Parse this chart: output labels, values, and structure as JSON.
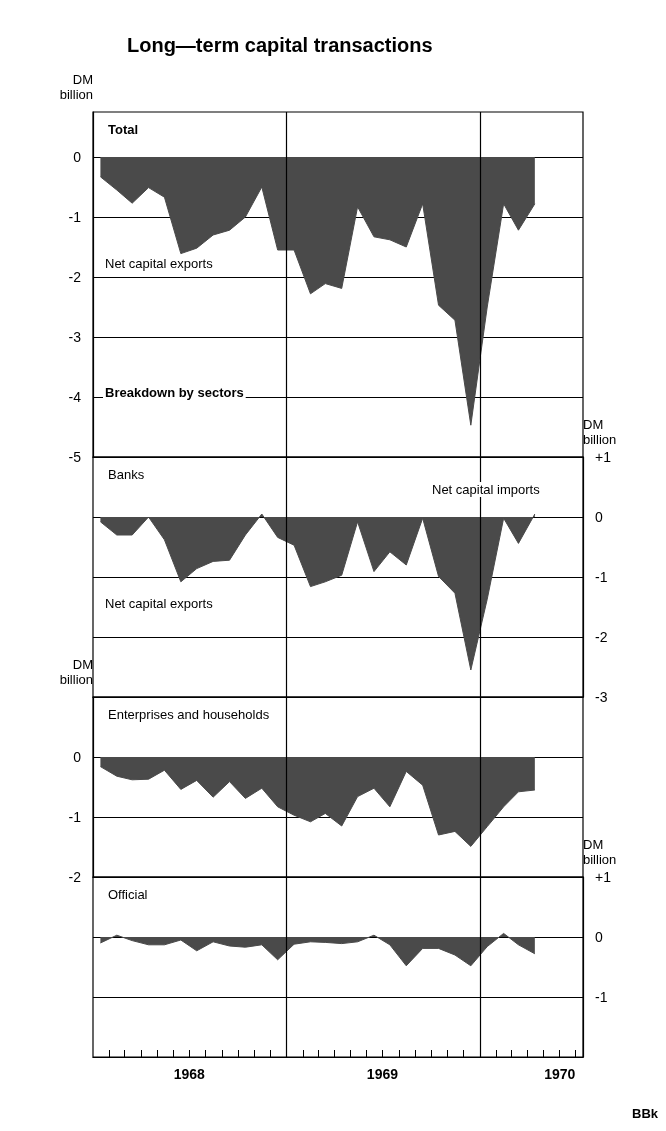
{
  "chart_data": [
    {
      "type": "area",
      "title": "Long—term capital transactions",
      "subtitle": "Total",
      "ylabel": "DM billion",
      "annotations": [
        "Net capital exports",
        "Breakdown by sectors"
      ],
      "x": [
        "1968-01-15",
        "1968-02-15",
        "1968-03-15",
        "1968-04-15",
        "1968-05-15",
        "1968-06-15",
        "1968-07-15",
        "1968-08-15",
        "1968-09-15",
        "1968-10-15",
        "1968-11-15",
        "1968-12-15",
        "1969-01-15",
        "1969-02-15",
        "1969-03-15",
        "1969-04-15",
        "1969-05-15",
        "1969-06-15",
        "1969-07-15",
        "1969-08-15",
        "1969-09-15",
        "1969-10-15",
        "1969-11-15",
        "1969-12-15",
        "1970-01-15",
        "1970-02-15",
        "1970-03-15",
        "1970-04-15"
      ],
      "values": [
        -0.33,
        -0.55,
        -0.77,
        -0.51,
        -0.67,
        -1.61,
        -1.52,
        -1.3,
        -1.22,
        -1.0,
        -0.5,
        -1.55,
        -1.55,
        -2.28,
        -2.11,
        -2.19,
        -0.83,
        -1.33,
        -1.38,
        -1.5,
        -0.78,
        -2.47,
        -2.72,
        -4.47,
        -2.5,
        -0.78,
        -1.22,
        -0.78
      ],
      "color": "#4a4a4a",
      "marker": "none",
      "xlim": [
        "1968-01-01",
        "1970-07-15"
      ],
      "ylim": [
        -5,
        0.75
      ],
      "yticks": [
        -5,
        -4,
        -3,
        -2,
        -1,
        0
      ],
      "grid": "y",
      "tick_labels": "y",
      "ref_lines": [
        {
          "axis": "x",
          "value": "1969-01-01",
          "color": "#000000"
        },
        {
          "axis": "x",
          "value": "1970-01-01",
          "color": "#000000"
        }
      ]
    },
    {
      "type": "area",
      "title": "Banks",
      "y2label": "DM billion",
      "annotations": [
        "Net capital imports",
        "Net capital exports"
      ],
      "x": [
        "1968-01-15",
        "1968-02-15",
        "1968-03-15",
        "1968-04-15",
        "1968-05-15",
        "1968-06-15",
        "1968-07-15",
        "1968-08-15",
        "1968-09-15",
        "1968-10-15",
        "1968-11-15",
        "1968-12-15",
        "1969-01-15",
        "1969-02-15",
        "1969-03-15",
        "1969-04-15",
        "1969-05-15",
        "1969-06-15",
        "1969-07-15",
        "1969-08-15",
        "1969-09-15",
        "1969-10-15",
        "1969-11-15",
        "1969-12-15",
        "1970-01-15",
        "1970-02-15",
        "1970-03-15",
        "1970-04-15"
      ],
      "series": [
        {
          "axis": "y2",
          "color": "#4a4a4a",
          "values": [
            -0.08,
            -0.3,
            -0.3,
            0,
            -0.38,
            -1.08,
            -0.86,
            -0.74,
            -0.72,
            -0.3,
            0.05,
            -0.34,
            -0.47,
            -1.16,
            -1.08,
            -0.97,
            -0.08,
            -0.91,
            -0.58,
            -0.8,
            -0.02,
            -0.99,
            -1.27,
            -2.55,
            -1.37,
            -0.02,
            -0.44,
            0.05
          ]
        }
      ],
      "marker": "none",
      "xlim": [
        "1968-01-01",
        "1970-07-15"
      ],
      "y2lim": [
        -3,
        1
      ],
      "y2ticks": [
        -3,
        -2,
        -1,
        0,
        {
          "value": 1,
          "label": "+1"
        }
      ],
      "grid": "y",
      "tick_labels": "y",
      "ref_lines": [
        {
          "axis": "x",
          "value": "1969-01-01",
          "color": "#000000"
        },
        {
          "axis": "x",
          "value": "1970-01-01",
          "color": "#000000"
        }
      ]
    },
    {
      "type": "area",
      "title": "Enterprises and households",
      "ylabel": "DM billion",
      "x": [
        "1968-01-15",
        "1968-02-15",
        "1968-03-15",
        "1968-04-15",
        "1968-05-15",
        "1968-06-15",
        "1968-07-15",
        "1968-08-15",
        "1968-09-15",
        "1968-10-15",
        "1968-11-15",
        "1968-12-15",
        "1969-01-15",
        "1969-02-15",
        "1969-03-15",
        "1969-04-15",
        "1969-05-15",
        "1969-06-15",
        "1969-07-15",
        "1969-08-15",
        "1969-09-15",
        "1969-10-15",
        "1969-11-15",
        "1969-12-15",
        "1970-01-15",
        "1970-02-15",
        "1970-03-15",
        "1970-04-15"
      ],
      "values": [
        -0.16,
        -0.32,
        -0.38,
        -0.37,
        -0.22,
        -0.54,
        -0.39,
        -0.67,
        -0.41,
        -0.69,
        -0.52,
        -0.83,
        -0.97,
        -1.08,
        -0.94,
        -1.15,
        -0.66,
        -0.52,
        -0.83,
        -0.24,
        -0.47,
        -1.3,
        -1.24,
        -1.49,
        -1.16,
        -0.83,
        -0.58,
        -0.55
      ],
      "color": "#4a4a4a",
      "marker": "none",
      "xlim": [
        "1968-01-01",
        "1970-07-15"
      ],
      "ylim": [
        -2,
        1
      ],
      "yticks": [
        -2,
        -1,
        0
      ],
      "grid": "y",
      "tick_labels": "y",
      "ref_lines": [
        {
          "axis": "x",
          "value": "1969-01-01",
          "color": "#000000"
        },
        {
          "axis": "x",
          "value": "1970-01-01",
          "color": "#000000"
        }
      ]
    },
    {
      "type": "area",
      "title": "Official",
      "y2label": "DM billion",
      "annotations": [
        "BBk"
      ],
      "x": [
        "1968-01-15",
        "1968-02-15",
        "1968-03-15",
        "1968-04-15",
        "1968-05-15",
        "1968-06-15",
        "1968-07-15",
        "1968-08-15",
        "1968-09-15",
        "1968-10-15",
        "1968-11-15",
        "1968-12-15",
        "1969-01-15",
        "1969-02-15",
        "1969-03-15",
        "1969-04-15",
        "1969-05-15",
        "1969-06-15",
        "1969-07-15",
        "1969-08-15",
        "1969-09-15",
        "1969-10-15",
        "1969-11-15",
        "1969-12-15",
        "1970-01-15",
        "1970-02-15",
        "1970-03-15",
        "1970-04-15"
      ],
      "series": [
        {
          "axis": "y2",
          "color": "#4a4a4a",
          "values": [
            -0.1,
            0.03,
            -0.06,
            -0.13,
            -0.13,
            -0.05,
            -0.23,
            -0.08,
            -0.15,
            -0.17,
            -0.13,
            -0.38,
            -0.12,
            -0.08,
            -0.09,
            -0.11,
            -0.08,
            0.03,
            -0.13,
            -0.48,
            -0.19,
            -0.19,
            -0.3,
            -0.48,
            -0.16,
            0.06,
            -0.13,
            -0.28
          ]
        }
      ],
      "marker": "none",
      "xlim": [
        "1968-01-01",
        "1970-07-15"
      ],
      "y2lim": [
        -2,
        1
      ],
      "y2ticks": [
        -1,
        0,
        {
          "value": 1,
          "label": "+1"
        }
      ],
      "xticks": [
        {
          "value": "1968-02-01",
          "label": null
        },
        {
          "value": "1968-03-01",
          "label": null
        },
        {
          "value": "1968-04-01",
          "label": null
        },
        {
          "value": "1968-05-01",
          "label": null
        },
        {
          "value": "1968-06-01",
          "label": null
        },
        {
          "value": "1968-07-01",
          "label": "1968"
        },
        {
          "value": "1968-08-01",
          "label": null
        },
        {
          "value": "1968-09-01",
          "label": null
        },
        {
          "value": "1968-10-01",
          "label": null
        },
        {
          "value": "1968-11-01",
          "label": null
        },
        {
          "value": "1968-12-01",
          "label": null
        },
        {
          "value": "1969-01-01",
          "label": null
        },
        {
          "value": "1969-02-01",
          "label": null
        },
        {
          "value": "1969-03-01",
          "label": null
        },
        {
          "value": "1969-04-01",
          "label": null
        },
        {
          "value": "1969-05-01",
          "label": null
        },
        {
          "value": "1969-06-01",
          "label": null
        },
        {
          "value": "1969-07-01",
          "label": "1969"
        },
        {
          "value": "1969-08-01",
          "label": null
        },
        {
          "value": "1969-09-01",
          "label": null
        },
        {
          "value": "1969-10-01",
          "label": null
        },
        {
          "value": "1969-11-01",
          "label": null
        },
        {
          "value": "1969-12-01",
          "label": null
        },
        {
          "value": "1970-01-01",
          "label": null
        },
        {
          "value": "1970-02-01",
          "label": null
        },
        {
          "value": "1970-03-01",
          "label": null
        },
        {
          "value": "1970-04-01",
          "label": null
        },
        {
          "value": "1970-05-01",
          "label": null
        },
        {
          "value": "1970-06-01",
          "label": "1970"
        },
        {
          "value": "1970-07-01",
          "label": null
        }
      ],
      "grid": "y",
      "ref_lines": [
        {
          "axis": "x",
          "value": "1969-01-01",
          "color": "#000000"
        },
        {
          "axis": "x",
          "value": "1970-01-01",
          "color": "#000000"
        }
      ]
    }
  ]
}
